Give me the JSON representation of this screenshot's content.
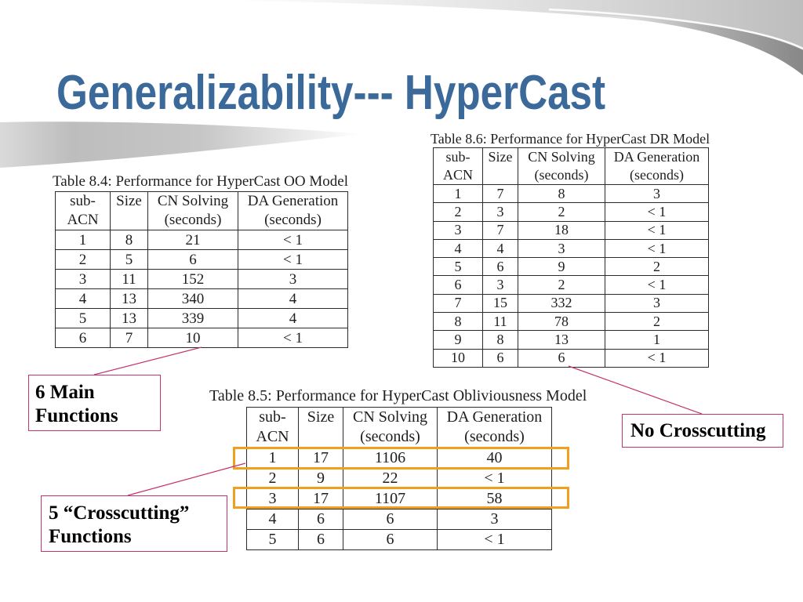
{
  "theme": {
    "title_color": "#3b6a9a",
    "callout_border_color": "#c8306e",
    "highlight_color": "#f0a020",
    "table_line_color": "#2b2b2b"
  },
  "slide": {
    "title": "Generalizability--- HyperCast"
  },
  "tables": [
    {
      "caption": "Table 8.4: Performance for HyperCast OO Model",
      "headers": [
        [
          "sub-",
          "ACN"
        ],
        [
          "Size"
        ],
        [
          "CN Solving",
          "(seconds)"
        ],
        [
          "DA Generation",
          "(seconds)"
        ]
      ],
      "rows": [
        [
          "1",
          "8",
          "21",
          "< 1"
        ],
        [
          "2",
          "5",
          "6",
          "< 1"
        ],
        [
          "3",
          "11",
          "152",
          "3"
        ],
        [
          "4",
          "13",
          "340",
          "4"
        ],
        [
          "5",
          "13",
          "339",
          "4"
        ],
        [
          "6",
          "7",
          "10",
          "< 1"
        ]
      ]
    },
    {
      "caption": "Table 8.6: Performance for HyperCast DR Model",
      "headers": [
        [
          "sub-",
          "ACN"
        ],
        [
          "Size"
        ],
        [
          "CN Solving",
          "(seconds)"
        ],
        [
          "DA Generation",
          "(seconds)"
        ]
      ],
      "rows": [
        [
          "1",
          "7",
          "8",
          "3"
        ],
        [
          "2",
          "3",
          "2",
          "< 1"
        ],
        [
          "3",
          "7",
          "18",
          "< 1"
        ],
        [
          "4",
          "4",
          "3",
          "< 1"
        ],
        [
          "5",
          "6",
          "9",
          "2"
        ],
        [
          "6",
          "3",
          "2",
          "< 1"
        ],
        [
          "7",
          "15",
          "332",
          "3"
        ],
        [
          "8",
          "11",
          "78",
          "2"
        ],
        [
          "9",
          "8",
          "13",
          "1"
        ],
        [
          "10",
          "6",
          "6",
          "< 1"
        ]
      ]
    },
    {
      "caption": "Table 8.5: Performance for HyperCast Obliviousness Model",
      "headers": [
        [
          "sub-",
          "ACN"
        ],
        [
          "Size"
        ],
        [
          "CN Solving",
          "(seconds)"
        ],
        [
          "DA Generation",
          "(seconds)"
        ]
      ],
      "rows": [
        [
          "1",
          "17",
          "1106",
          "40"
        ],
        [
          "2",
          "9",
          "22",
          "< 1"
        ],
        [
          "3",
          "17",
          "1107",
          "58"
        ],
        [
          "4",
          "6",
          "6",
          "3"
        ],
        [
          "5",
          "6",
          "6",
          "< 1"
        ]
      ]
    }
  ],
  "callouts": {
    "main_functions": [
      "6 Main",
      "Functions"
    ],
    "no_crosscutting": [
      "No Crosscutting"
    ],
    "crosscutting_functions": [
      "5 “Crosscutting”",
      "Functions"
    ]
  }
}
